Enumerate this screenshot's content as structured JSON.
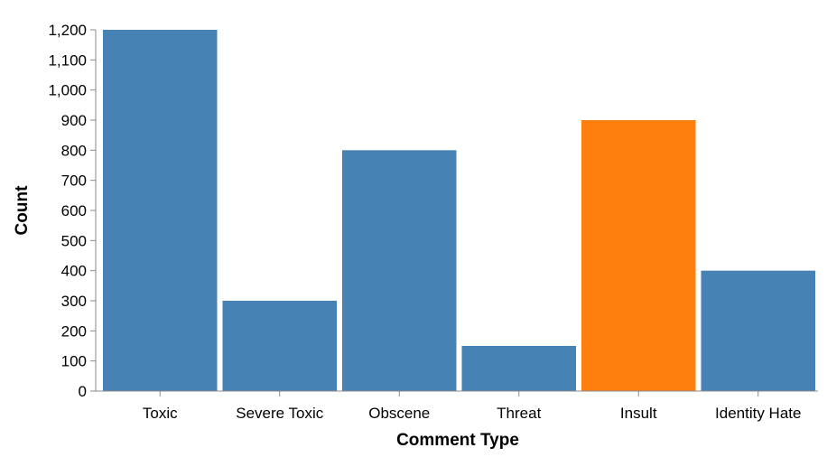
{
  "chart_data": {
    "type": "bar",
    "title": "",
    "xlabel": "Comment Type",
    "ylabel": "Count",
    "categories": [
      "Toxic",
      "Severe Toxic",
      "Obscene",
      "Threat",
      "Insult",
      "Identity Hate"
    ],
    "values": [
      1200,
      300,
      800,
      150,
      900,
      400
    ],
    "colors": [
      "#4682b4",
      "#4682b4",
      "#4682b4",
      "#4682b4",
      "#ff7f0e",
      "#4682b4"
    ],
    "ylim": [
      0,
      1200
    ],
    "yticks": [
      0,
      100,
      200,
      300,
      400,
      500,
      600,
      700,
      800,
      900,
      1000,
      1100,
      1200
    ],
    "ytick_labels": [
      "0",
      "100",
      "200",
      "300",
      "400",
      "500",
      "600",
      "700",
      "800",
      "900",
      "1,000",
      "1,100",
      "1,200"
    ],
    "grid": false,
    "legend": "none"
  }
}
